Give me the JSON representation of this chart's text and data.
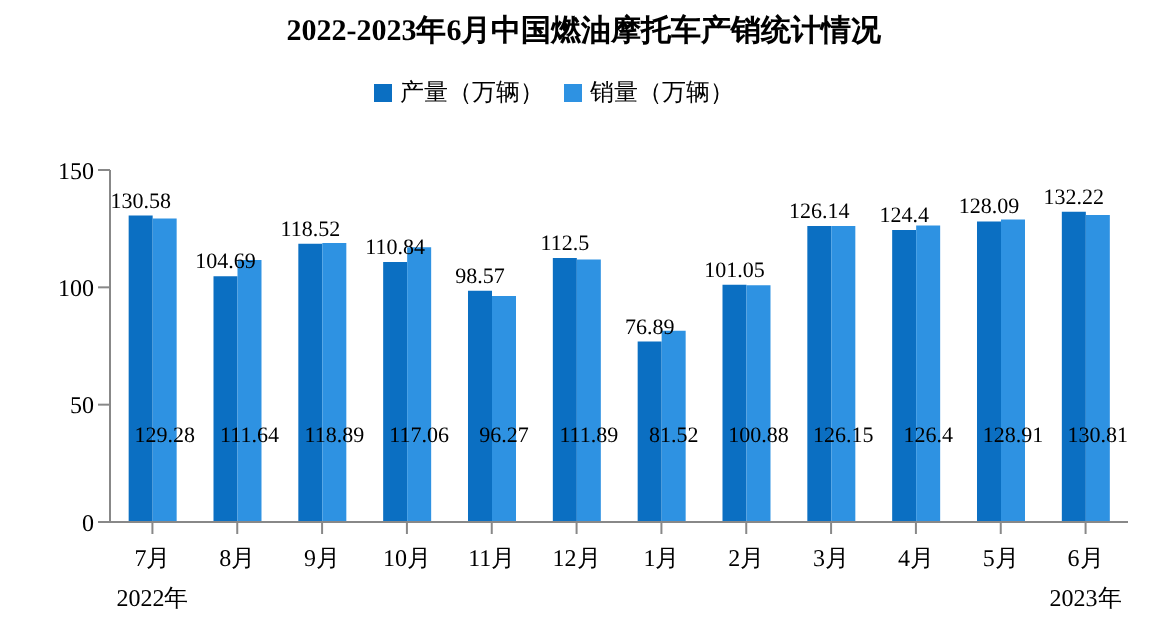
{
  "chart_data": {
    "type": "bar",
    "title": "2022-2023年6月中国燃油摩托车产销统计情况",
    "categories": [
      "7月",
      "8月",
      "9月",
      "10月",
      "11月",
      "12月",
      "1月",
      "2月",
      "3月",
      "4月",
      "5月",
      "6月"
    ],
    "series": [
      {
        "name": "产量（万辆）",
        "color": "#0b6fc2",
        "values": [
          130.58,
          104.69,
          118.52,
          110.84,
          98.57,
          112.5,
          76.89,
          101.05,
          126.14,
          124.4,
          128.09,
          132.22
        ]
      },
      {
        "name": "销量（万辆）",
        "color": "#2e92e2",
        "values": [
          129.28,
          111.64,
          118.89,
          117.06,
          96.27,
          111.89,
          81.52,
          100.88,
          126.15,
          126.4,
          128.91,
          130.81
        ]
      }
    ],
    "ylim": [
      0,
      150
    ],
    "yticks": [
      0,
      50,
      100,
      150
    ],
    "grid": false,
    "legend": "top",
    "data_labels": true,
    "annotations": [
      "2022年",
      "2023年"
    ]
  }
}
